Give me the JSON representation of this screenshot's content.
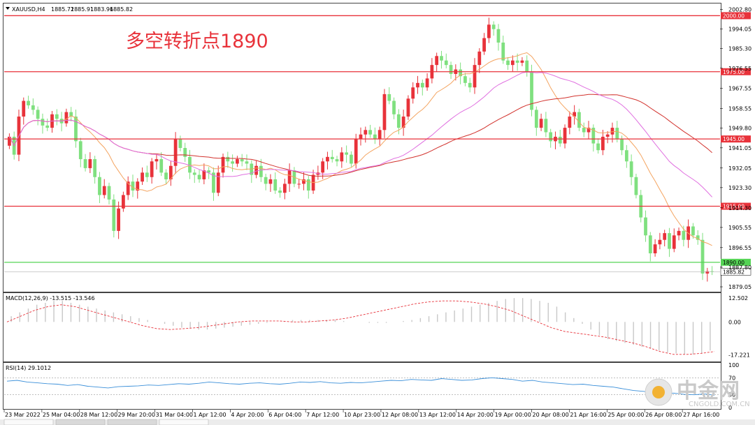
{
  "chart_data": [
    {
      "type": "candlestick",
      "title": "XAUUSD,H4",
      "header_values": [
        "1885.72",
        "1885.91",
        "1883.96",
        "1885.82"
      ],
      "annotation": "多空转折点1890",
      "y_ticks": [
        "2002.80",
        "1994.05",
        "1985.30",
        "1976.55",
        "1967.55",
        "1958.55",
        "1949.80",
        "1941.05",
        "1932.05",
        "1923.30",
        "1914.30",
        "1905.55",
        "1896.55",
        "1887.80",
        "1879.05"
      ],
      "ylim": [
        1877.5,
        2004.5
      ],
      "x_labels": [
        "23 Mar 2022",
        "25 Mar 04:00",
        "28 Mar 12:00",
        "29 Mar 20:00",
        "31 Mar 04:00",
        "1 Apr 12:00",
        "4 Apr 20:00",
        "6 Apr 04:00",
        "7 Apr 12:00",
        "10 Apr 23:00",
        "12 Apr 08:00",
        "13 Apr 12:00",
        "14 Apr 20:00",
        "19 Apr 00:00",
        "20 Apr 08:00",
        "21 Apr 16:00",
        "25 Apr 00:00",
        "26 Apr 08:00",
        "27 Apr 16:00"
      ],
      "horizontal_levels": [
        {
          "value": 2000.0,
          "label": "2000.00",
          "color": "#e8323a"
        },
        {
          "value": 1975.0,
          "label": "1975.00",
          "color": "#e8323a"
        },
        {
          "value": 1945.0,
          "label": "1945.00",
          "color": "#e8323a"
        },
        {
          "value": 1915.0,
          "label": "1915.00",
          "color": "#e8323a"
        },
        {
          "value": 1890.0,
          "label": "1890.00",
          "color": "#55d455"
        }
      ],
      "current_price": {
        "value": 1885.82,
        "label": "1885.82"
      },
      "colors": {
        "bull": "#e8323a",
        "bear": "#7fe07f",
        "ma_fast": "#f4a460",
        "ma_mid": "#d2322d",
        "ma_slow": "#e070e0"
      },
      "closes": [
        1946,
        1938,
        1955,
        1962,
        1960,
        1958,
        1954,
        1951,
        1950,
        1956,
        1954,
        1952,
        1957,
        1955,
        1944,
        1936,
        1932,
        1936,
        1928,
        1920,
        1924,
        1918,
        1904,
        1914,
        1920,
        1926,
        1922,
        1926,
        1930,
        1928,
        1935,
        1936,
        1930,
        1927,
        1933,
        1945,
        1941,
        1937,
        1930,
        1929,
        1927,
        1931,
        1930,
        1921,
        1930,
        1937,
        1935,
        1934,
        1936,
        1935,
        1934,
        1929,
        1933,
        1928,
        1925,
        1927,
        1922,
        1921,
        1925,
        1931,
        1925,
        1925,
        1927,
        1922,
        1929,
        1930,
        1935,
        1937,
        1936,
        1935,
        1939,
        1938,
        1934,
        1945,
        1947,
        1949,
        1947,
        1945,
        1949,
        1965,
        1962,
        1956,
        1950,
        1955,
        1963,
        1968,
        1970,
        1968,
        1972,
        1978,
        1982,
        1980,
        1978,
        1974,
        1976,
        1973,
        1970,
        1968,
        1978,
        1984,
        1990,
        1996,
        1994,
        1988,
        1980,
        1978,
        1980,
        1979,
        1980,
        1975,
        1958,
        1950,
        1954,
        1948,
        1944,
        1946,
        1943,
        1950,
        1955,
        1957,
        1950,
        1948,
        1950,
        1943,
        1940,
        1946,
        1947,
        1950,
        1945,
        1940,
        1935,
        1928,
        1920,
        1910,
        1902,
        1894,
        1898,
        1900,
        1903,
        1896,
        1902,
        1904,
        1900,
        1906,
        1902,
        1900,
        1885,
        1886,
        1885.82
      ],
      "sub_charts": [
        {
          "type": "macd",
          "label": "MACD(12,26,9) -13.515 -13.546",
          "y_ticks": [
            "12.502",
            "0.00",
            "-17.221"
          ],
          "ylim": [
            -20,
            14
          ],
          "histogram": [
            3,
            5,
            7,
            9,
            10,
            11,
            11,
            10,
            9,
            8,
            7,
            6,
            5,
            4,
            3,
            2,
            1,
            0,
            -1,
            -2,
            -3,
            -3.5,
            -4,
            -4,
            -3.5,
            -3,
            -2.5,
            -2,
            -1.5,
            -1,
            -0.5,
            0,
            0.5,
            1,
            1,
            1,
            1,
            1,
            1,
            0.5,
            0,
            0,
            -0.5,
            -0.5,
            -0.5,
            0,
            0.5,
            1,
            2,
            3,
            4,
            5,
            6,
            7,
            8,
            9,
            10,
            11,
            12,
            12.5,
            12.5,
            12,
            11,
            10,
            8,
            5,
            2,
            -1,
            -4,
            -7,
            -9,
            -10,
            -11,
            -12,
            -13,
            -14,
            -15,
            -16,
            -16.5,
            -17,
            -17,
            -16.5,
            -15
          ],
          "signal": [
            0,
            3,
            6,
            8,
            9,
            8,
            6,
            4,
            2,
            0,
            -2,
            -3.5,
            -4,
            -3.5,
            -3,
            -2,
            -1,
            0,
            0.5,
            0.5,
            0.5,
            0,
            0,
            0.5,
            1,
            2,
            3.5,
            5,
            6.5,
            8,
            9.5,
            10.5,
            11,
            11,
            10.5,
            9.5,
            8,
            6,
            3,
            0,
            -3,
            -5,
            -6,
            -7,
            -8,
            -9.5,
            -11,
            -13,
            -15.5,
            -17,
            -17,
            -16.5,
            -15.5
          ]
        },
        {
          "type": "rsi",
          "label": "RSI(14) 29.1012",
          "y_ticks": [
            "100",
            "70",
            "30",
            "0"
          ],
          "ylim": [
            0,
            100
          ],
          "values": [
            62,
            64,
            60,
            58,
            56,
            55,
            52,
            54,
            50,
            48,
            46,
            49,
            50,
            51,
            53,
            52,
            54,
            56,
            55,
            57,
            60,
            58,
            56,
            55,
            57,
            58,
            56,
            55,
            57,
            60,
            59,
            61,
            58,
            57,
            59,
            58,
            60,
            62,
            64,
            63,
            66,
            65,
            64,
            68,
            66,
            64,
            65,
            68,
            70,
            68,
            66,
            62,
            64,
            60,
            58,
            56,
            54,
            55,
            52,
            50,
            48,
            44,
            40,
            38,
            35,
            33,
            34,
            31,
            30,
            32,
            29
          ]
        }
      ]
    }
  ],
  "watermark": {
    "name": "中金网",
    "url": "CNGOLD.COM.CN"
  }
}
